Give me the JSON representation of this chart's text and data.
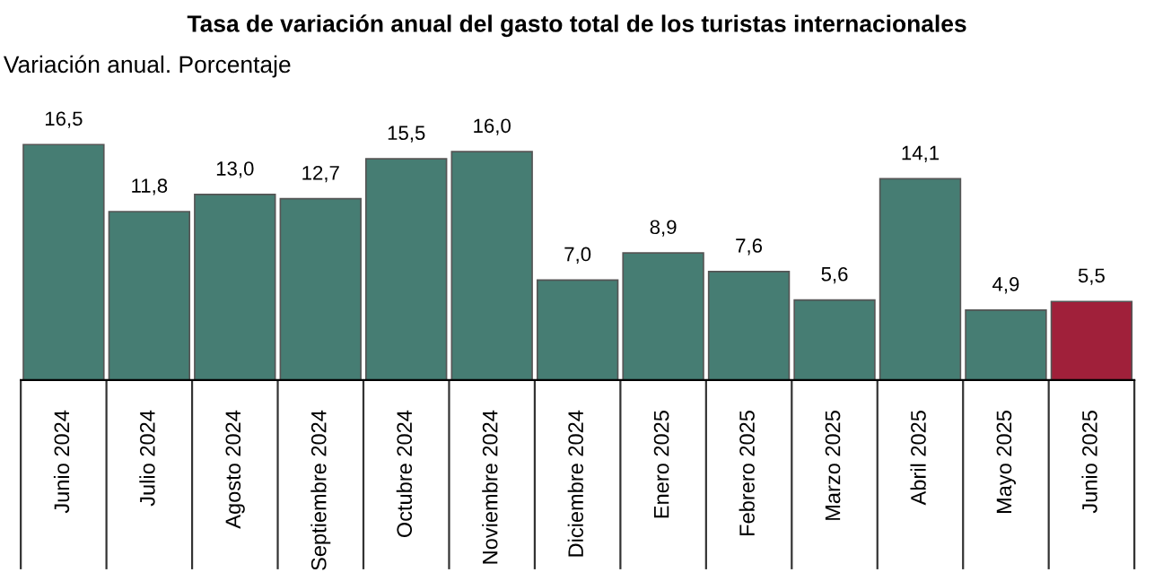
{
  "chart_data": {
    "type": "bar",
    "title": "Tasa de variación anual del gasto total de los turistas internacionales",
    "subtitle": "Variación anual. Porcentaje",
    "categories": [
      "Junio 2024",
      "Julio 2024",
      "Agosto 2024",
      "Septiembre 2024",
      "Octubre 2024",
      "Noviembre 2024",
      "Diciembre 2024",
      "Enero 2025",
      "Febrero 2025",
      "Marzo 2025",
      "Abril 2025",
      "Mayo 2025",
      "Junio 2025"
    ],
    "values": [
      16.5,
      11.8,
      13.0,
      12.7,
      15.5,
      16.0,
      7.0,
      8.9,
      7.6,
      5.6,
      14.1,
      4.9,
      5.5
    ],
    "value_labels": [
      "16,5",
      "11,8",
      "13,0",
      "12,7",
      "15,5",
      "16,0",
      "7,0",
      "8,9",
      "7,6",
      "5,6",
      "14,1",
      "4,9",
      "5,5"
    ],
    "colors": [
      "#467d73",
      "#467d73",
      "#467d73",
      "#467d73",
      "#467d73",
      "#467d73",
      "#467d73",
      "#467d73",
      "#467d73",
      "#467d73",
      "#467d73",
      "#467d73",
      "#a0203a"
    ],
    "grid": false,
    "legend": false
  }
}
